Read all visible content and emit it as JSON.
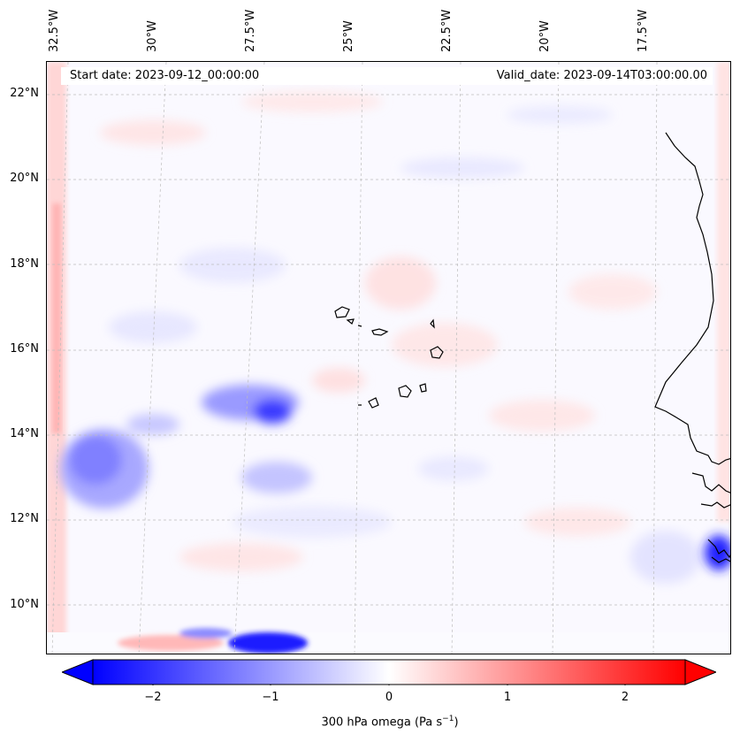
{
  "map": {
    "start_date": "Start date: 2023-09-12_00:00:00",
    "valid_date": "Valid_date: 2023-09-14T03:00:00.00",
    "longitude_labels": [
      "32.5°W",
      "30°W",
      "27.5°W",
      "25°W",
      "22.5°W",
      "20°W",
      "17.5°W"
    ],
    "latitude_labels": [
      "22°N",
      "20°N",
      "18°N",
      "16°N",
      "14°N",
      "12°N",
      "10°N"
    ],
    "variable": "300 hPa omega",
    "colormap": {
      "negative": "#0000ff",
      "zero": "#ffffff",
      "positive": "#ff0000"
    }
  },
  "colorbar": {
    "label_text": "300 hPa omega (Pa s",
    "label_exp": "−1",
    "label_close": ")",
    "ticks": [
      "−2",
      "−1",
      "0",
      "1",
      "2"
    ],
    "range": [
      -2.75,
      2.75
    ]
  }
}
